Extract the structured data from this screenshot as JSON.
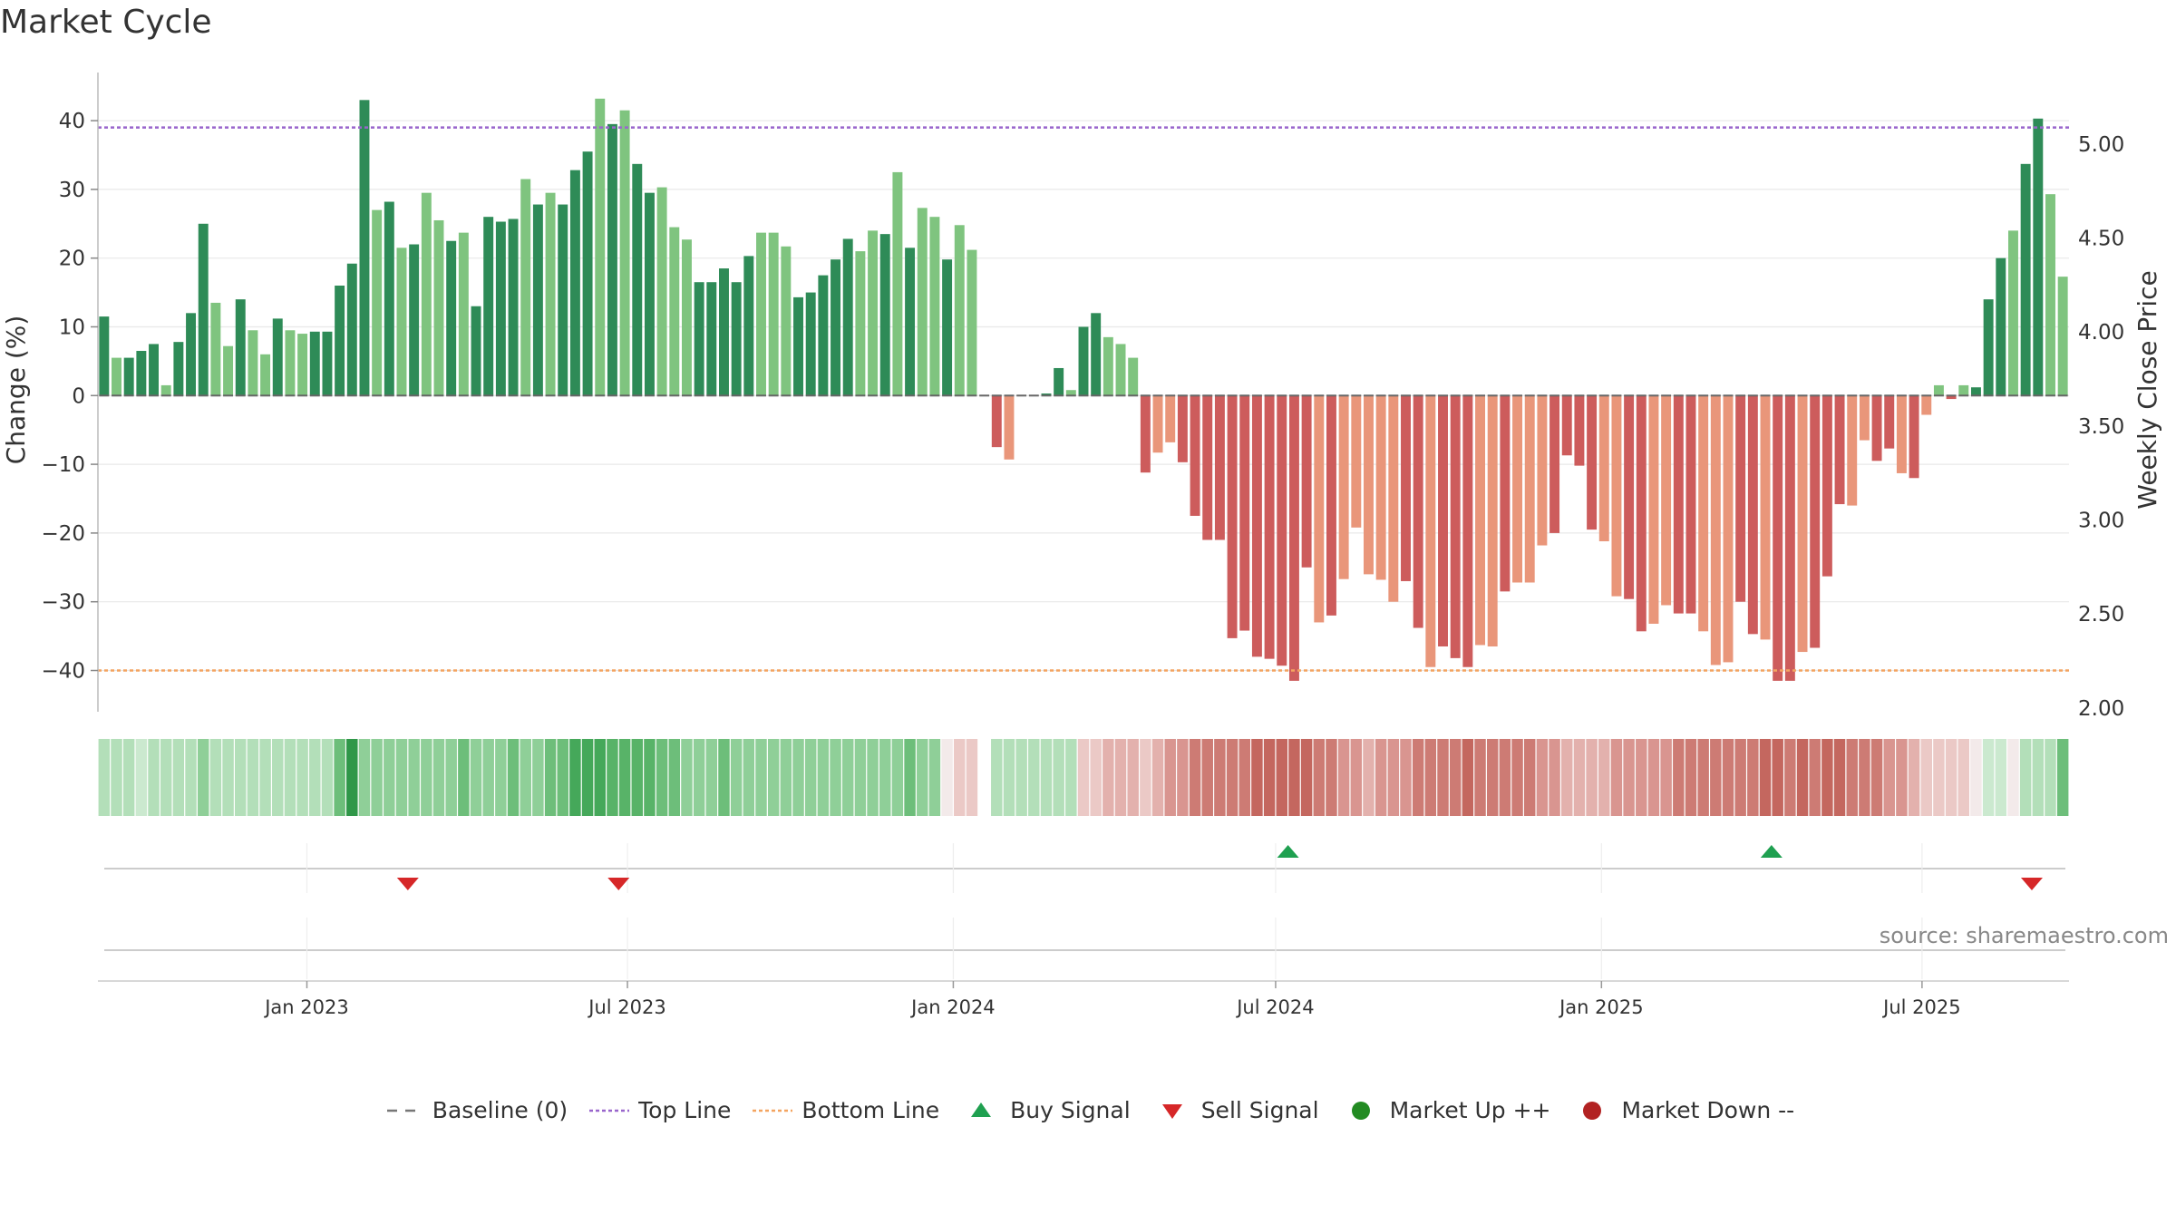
{
  "title": "Market Cycle",
  "source": "source: sharemaestro.com",
  "colors": {
    "up_dark": "#2e8b57",
    "up_light": "#7fc47f",
    "down_dark": "#cd5c5c",
    "down_light": "#e9967a",
    "top_line": "#9966cc",
    "bottom_line": "#f4a460",
    "buy": "#1fa050",
    "sell": "#d62728",
    "market_up": "#228b22",
    "market_down": "#b22222",
    "grid": "#e8e8e8"
  },
  "chart_data": {
    "type": "bar",
    "ylabel": "Change (%)",
    "y2label": "Weekly Close Price",
    "ylim": [
      -46,
      47
    ],
    "y2lim": [
      1.98,
      5.38
    ],
    "yticks": [
      "40",
      "30",
      "20",
      "10",
      "0",
      "−10",
      "−20",
      "−30",
      "−40"
    ],
    "ytick_values": [
      40,
      30,
      20,
      10,
      0,
      -10,
      -20,
      -30,
      -40
    ],
    "y2ticks": [
      "5.00",
      "4.50",
      "4.00",
      "3.50",
      "3.00",
      "2.50",
      "2.00"
    ],
    "y2tick_values": [
      5.0,
      4.5,
      4.0,
      3.5,
      3.0,
      2.5,
      2.0
    ],
    "top_line": 39,
    "bottom_line": -40,
    "start_date": "2022-09-05",
    "week_days": 7,
    "xticks": [
      {
        "label": "Jan 2023",
        "date": "2023-01-01"
      },
      {
        "label": "Jul 2023",
        "date": "2023-07-01"
      },
      {
        "label": "Jan 2024",
        "date": "2024-01-01"
      },
      {
        "label": "Jul 2024",
        "date": "2024-07-01"
      },
      {
        "label": "Jan 2025",
        "date": "2025-01-01"
      },
      {
        "label": "Jul 2025",
        "date": "2025-07-01"
      }
    ],
    "values": [
      11.5,
      5.5,
      5.5,
      6.5,
      7.5,
      1.5,
      7.8,
      12,
      25,
      13.5,
      7.2,
      14,
      9.5,
      6,
      11.2,
      9.5,
      9,
      9.3,
      9.3,
      16,
      19.2,
      43,
      27,
      28.2,
      21.5,
      22,
      29.5,
      25.5,
      22.5,
      23.7,
      13,
      26,
      25.3,
      25.7,
      31.5,
      27.8,
      29.5,
      27.8,
      32.8,
      35.5,
      43.2,
      39.5,
      41.5,
      33.7,
      29.5,
      30.3,
      24.5,
      22.7,
      16.5,
      16.5,
      18.5,
      16.5,
      20.3,
      23.7,
      23.7,
      21.7,
      14.3,
      15,
      17.5,
      19.8,
      22.8,
      21,
      24,
      23.5,
      32.5,
      21.5,
      27.3,
      26,
      19.8,
      24.8,
      21.2,
      0,
      -7.5,
      -9.3,
      0,
      0,
      0.3,
      4,
      0.8,
      10,
      12,
      8.5,
      7.5,
      5.5,
      -11.2,
      -8.3,
      -6.8,
      -9.7,
      -17.5,
      -21,
      -21,
      -35.3,
      -34.2,
      -38,
      -38.3,
      -39.3,
      -41.5,
      -25,
      -33,
      -32,
      -26.7,
      -19.2,
      -26,
      -26.8,
      -30,
      -27,
      -33.8,
      -39.5,
      -36.5,
      -38.2,
      -39.5,
      -36.3,
      -36.5,
      -28.5,
      -27.2,
      -27.2,
      -21.8,
      -20,
      -8.7,
      -10.2,
      -19.5,
      -21.2,
      -29.2,
      -29.6,
      -34.3,
      -33.2,
      -30.5,
      -31.7,
      -31.7,
      -34.3,
      -39.2,
      -38.8,
      -30,
      -34.7,
      -35.5,
      -41.5,
      -41.5,
      -37.3,
      -36.7,
      -26.3,
      -15.8,
      -16,
      -6.5,
      -9.5,
      -7.7,
      -11.3,
      -12,
      -2.8,
      1.5,
      -0.5,
      1.5,
      1.2,
      14,
      20,
      24,
      33.7,
      40.3,
      29.3,
      17.3
    ],
    "bar_shades": "DLDDDLDDDLLDLLDLLDDDDDLDLDLLDLDDDDLDLDDDLDLDDLLLDDDDDLLLDDDDDLLDLDLLDLLDDLLDDDLDDLLLDLLDDDDDDDDDDDLDLLLLLDDLDDDLLDLLLDDDDLLDDLLDDLLLDDLDDLDDDLLDDLDLLDLDDDLDDLLDDDDDL",
    "strip": "bbbabbbbcbbbbbbbbbbdgccccccccdcccdccddfffeeeeddcccdccccccccccccccdcc0AA-bbbbbbbAABBBABCCDDDDDEEEEEDDCCBCCCDDDDEDDDDDCCBBBBCCCCCDDDDDDDEEDEDEEDDDCCBAAAA0aa0bbbdfec",
    "signals": [
      {
        "type": "sell",
        "date": "2023-02-27"
      },
      {
        "type": "sell",
        "date": "2023-06-26"
      },
      {
        "type": "buy",
        "date": "2024-07-08"
      },
      {
        "type": "buy",
        "date": "2025-04-07"
      },
      {
        "type": "sell",
        "date": "2025-09-01"
      }
    ]
  },
  "legend": [
    {
      "key": "baseline",
      "label": "Baseline (0)"
    },
    {
      "key": "top",
      "label": "Top Line"
    },
    {
      "key": "bottom",
      "label": "Bottom Line"
    },
    {
      "key": "buy",
      "label": "Buy Signal"
    },
    {
      "key": "sell",
      "label": "Sell Signal"
    },
    {
      "key": "mup",
      "label": "Market Up ++"
    },
    {
      "key": "mdown",
      "label": "Market Down --"
    }
  ]
}
